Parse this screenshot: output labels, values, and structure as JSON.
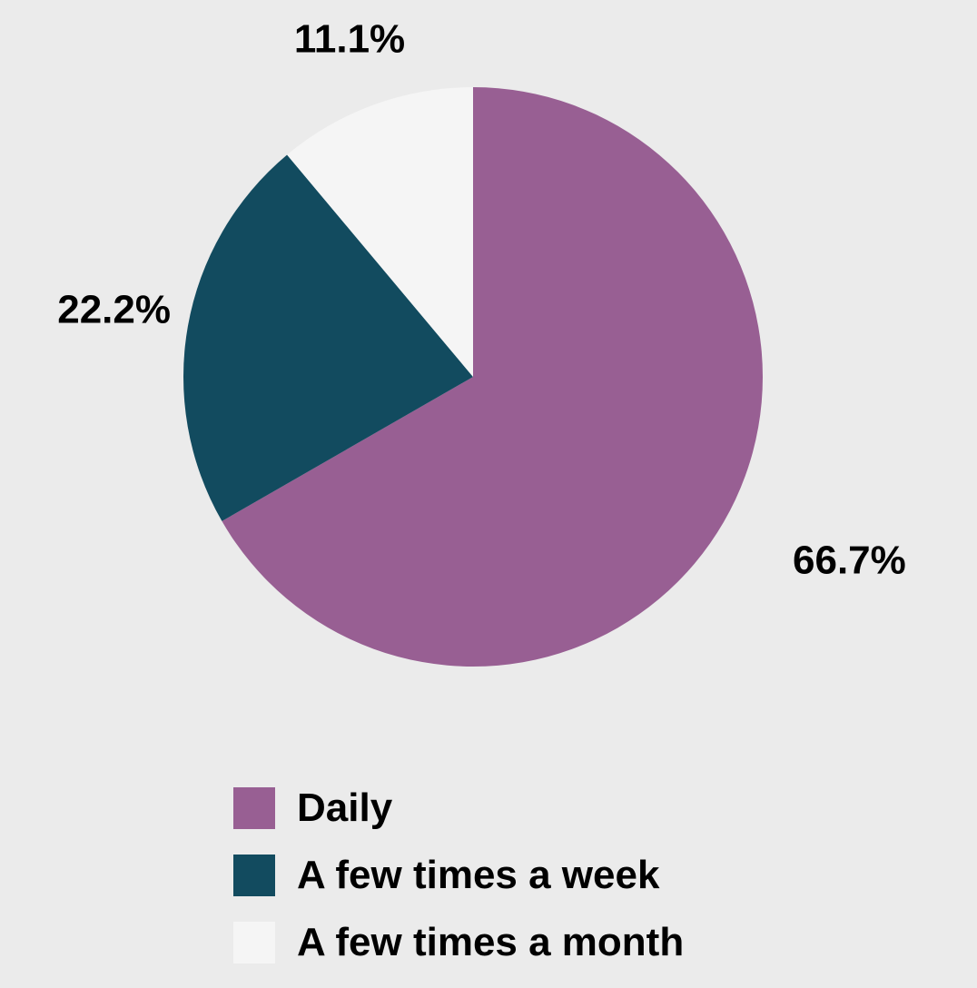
{
  "chart_data": {
    "type": "pie",
    "title": "",
    "categories": [
      "Daily",
      "A few times a week",
      "A few times a month"
    ],
    "values": [
      66.7,
      22.2,
      11.1
    ],
    "data_labels": [
      "66.7%",
      "22.2%",
      "11.1%"
    ],
    "colors": [
      "#985f93",
      "#124b5f",
      "#f5f5f5"
    ],
    "start_angle_deg": 0,
    "direction": "clockwise",
    "legend_placement": "bottom"
  },
  "legend": {
    "items": [
      {
        "label": "Daily",
        "color": "#985f93"
      },
      {
        "label": "A few times a week",
        "color": "#124b5f"
      },
      {
        "label": "A few times a month",
        "color": "#f5f5f5"
      }
    ]
  }
}
